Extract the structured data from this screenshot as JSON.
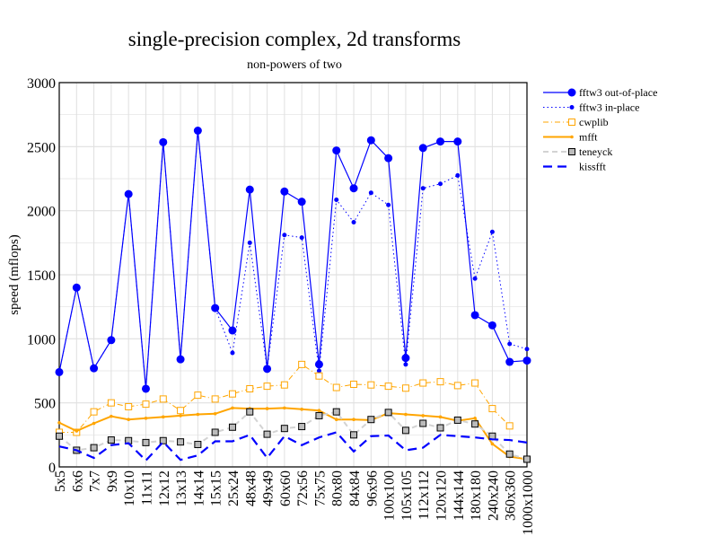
{
  "chart_data": {
    "type": "line",
    "title": "single-precision complex, 2d transforms",
    "subtitle": "non-powers of two",
    "xlabel": "",
    "ylabel": "speed (mflops)",
    "ylim": [
      0,
      3000
    ],
    "yticks": [
      "0",
      "500",
      "1000",
      "1500",
      "2000",
      "2500",
      "3000"
    ],
    "grid": true,
    "legend_position": "top-right outside",
    "categories": [
      "5x5",
      "6x6",
      "7x7",
      "9x9",
      "10x10",
      "11x11",
      "12x12",
      "13x13",
      "14x14",
      "15x15",
      "25x24",
      "48x48",
      "49x49",
      "60x60",
      "72x56",
      "75x75",
      "80x80",
      "84x84",
      "96x96",
      "100x100",
      "105x105",
      "112x112",
      "120x120",
      "144x144",
      "180x180",
      "240x240",
      "360x360",
      "1000x1000"
    ],
    "series": [
      {
        "name": "fftw3 out-of-place",
        "color": "#0000ff",
        "style": "solid-dot-large",
        "values": [
          740,
          1400,
          770,
          990,
          2130,
          610,
          2535,
          840,
          2625,
          1240,
          1065,
          2165,
          765,
          2150,
          2070,
          800,
          2470,
          2175,
          2550,
          2410,
          850,
          2490,
          2540,
          2540,
          1185,
          1105,
          820,
          830
        ]
      },
      {
        "name": "fftw3 in-place",
        "color": "#0000ff",
        "style": "dotted-dot-small",
        "values": [
          740,
          1400,
          770,
          990,
          2130,
          610,
          2535,
          840,
          2625,
          1240,
          890,
          1750,
          765,
          1810,
          1790,
          750,
          2085,
          1910,
          2140,
          2045,
          800,
          2175,
          2210,
          2275,
          1470,
          1835,
          960,
          920
        ]
      },
      {
        "name": "cwplib",
        "color": "#ffa500",
        "style": "dashdot-square",
        "values": [
          270,
          270,
          430,
          500,
          470,
          490,
          530,
          440,
          560,
          530,
          570,
          610,
          630,
          640,
          800,
          710,
          620,
          645,
          640,
          630,
          615,
          655,
          665,
          635,
          655,
          455,
          320,
          null
        ]
      },
      {
        "name": "mfft",
        "color": "#ffa500",
        "style": "solid-thick",
        "values": [
          345,
          280,
          340,
          395,
          370,
          380,
          390,
          400,
          410,
          415,
          460,
          455,
          455,
          460,
          450,
          440,
          370,
          370,
          365,
          420,
          410,
          400,
          390,
          360,
          380,
          180,
          80,
          60
        ]
      },
      {
        "name": "teneyck",
        "color": "#d3d3d3",
        "style": "dashed-gray-square",
        "values": [
          240,
          130,
          150,
          210,
          205,
          190,
          205,
          195,
          175,
          270,
          310,
          430,
          255,
          300,
          315,
          400,
          430,
          250,
          370,
          425,
          285,
          340,
          305,
          365,
          335,
          240,
          100,
          60
        ]
      },
      {
        "name": "kissfft",
        "color": "#0000ff",
        "style": "dashed-thick",
        "values": [
          160,
          130,
          70,
          170,
          185,
          50,
          195,
          55,
          90,
          200,
          200,
          250,
          70,
          240,
          170,
          230,
          270,
          120,
          240,
          245,
          130,
          150,
          250,
          240,
          230,
          215,
          210,
          190
        ]
      }
    ]
  }
}
